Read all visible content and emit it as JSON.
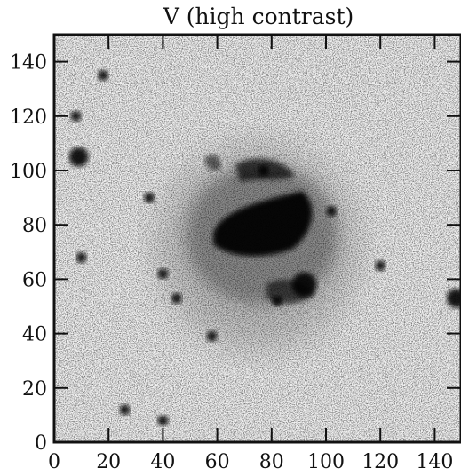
{
  "title": "V (high contrast)",
  "axes": {
    "x_ticks": [
      0,
      20,
      40,
      60,
      80,
      100,
      120,
      140
    ],
    "y_ticks": [
      0,
      20,
      40,
      60,
      80,
      100,
      120,
      140
    ],
    "x_range": [
      0,
      150
    ],
    "y_range": [
      0,
      150
    ],
    "colormap": "grayscale (white = low, black = high)"
  },
  "features": {
    "galaxy_center": [
      75,
      80
    ],
    "point_sources": [
      {
        "x": 9,
        "y": 105
      },
      {
        "x": 35,
        "y": 90
      },
      {
        "x": 10,
        "y": 68
      },
      {
        "x": 40,
        "y": 62
      },
      {
        "x": 45,
        "y": 53
      },
      {
        "x": 58,
        "y": 39
      },
      {
        "x": 92,
        "y": 58
      },
      {
        "x": 82,
        "y": 52
      },
      {
        "x": 120,
        "y": 65
      },
      {
        "x": 148,
        "y": 53
      },
      {
        "x": 26,
        "y": 12
      },
      {
        "x": 40,
        "y": 8
      },
      {
        "x": 18,
        "y": 135
      },
      {
        "x": 8,
        "y": 120
      },
      {
        "x": 77,
        "y": 100
      },
      {
        "x": 102,
        "y": 85
      }
    ]
  }
}
